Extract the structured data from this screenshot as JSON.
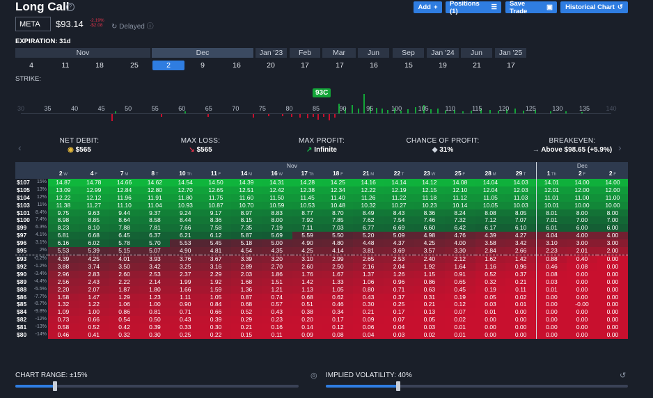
{
  "header": {
    "title": "Long Call",
    "help_icon": "question-circle-icon",
    "buttons": {
      "add": "Add",
      "positions": "Positions (1)",
      "save": "Save Trade",
      "historical": "Historical Chart"
    }
  },
  "quote": {
    "ticker": "META",
    "price": "$93.14",
    "change_pct": "-2.19%",
    "change_abs": "-$2.08",
    "delayed": "Delayed"
  },
  "expiration": {
    "label": "EXPIRATION: 31d",
    "months": [
      {
        "label": "Nov",
        "selected": false
      },
      {
        "label": "Dec",
        "selected": true
      },
      {
        "label": "Jan '23",
        "selected": false
      },
      {
        "label": "Feb",
        "selected": false
      },
      {
        "label": "Mar",
        "selected": false
      },
      {
        "label": "Jun",
        "selected": false
      },
      {
        "label": "Sep",
        "selected": false
      },
      {
        "label": "Jan '24",
        "selected": false
      },
      {
        "label": "Jun",
        "selected": false
      },
      {
        "label": "Jan '25",
        "selected": false
      }
    ],
    "days": [
      "4",
      "11",
      "18",
      "25",
      "2",
      "9",
      "16",
      "20",
      "17",
      "17",
      "16",
      "15",
      "19",
      "21",
      "17"
    ],
    "selected_day": "2"
  },
  "strike": {
    "label": "STRIKE:",
    "selected": "93C",
    "ticks": [
      "30",
      "35",
      "40",
      "45",
      "50",
      "55",
      "60",
      "65",
      "70",
      "75",
      "80",
      "85",
      "90",
      "95",
      "100",
      "105",
      "110",
      "115",
      "120",
      "125",
      "130",
      "135",
      "140"
    ]
  },
  "metrics": [
    {
      "label": "NET DEBIT:",
      "value": "$565",
      "icon": "coins-icon"
    },
    {
      "label": "MAX LOSS:",
      "value": "$565",
      "icon": "arrow-down-right-icon"
    },
    {
      "label": "MAX PROFIT:",
      "value": "Infinite",
      "icon": "arrow-up-right-icon"
    },
    {
      "label": "CHANCE OF PROFIT:",
      "value": "31%",
      "icon": "dice-icon"
    },
    {
      "label": "BREAKEVEN:",
      "value": "Above $98.65 (+5.9%)",
      "icon": "arrow-right-icon"
    }
  ],
  "grid": {
    "month_headers": [
      {
        "label": "",
        "span": 0
      },
      {
        "label": "Nov",
        "span": 22
      },
      {
        "label": "Dec",
        "span": 6
      }
    ],
    "days": [
      {
        "d": "2",
        "s": "W"
      },
      {
        "d": "4",
        "s": "F"
      },
      {
        "d": "7",
        "s": "M"
      },
      {
        "d": "8",
        "s": "T"
      },
      {
        "d": "10",
        "s": "Th"
      },
      {
        "d": "11",
        "s": "F"
      },
      {
        "d": "14",
        "s": "M"
      },
      {
        "d": "16",
        "s": "W"
      },
      {
        "d": "17",
        "s": "Th"
      },
      {
        "d": "18",
        "s": "F"
      },
      {
        "d": "21",
        "s": "M"
      },
      {
        "d": "22",
        "s": "T"
      },
      {
        "d": "23",
        "s": "W"
      },
      {
        "d": "25",
        "s": "F"
      },
      {
        "d": "28",
        "s": "M"
      },
      {
        "d": "29",
        "s": "T"
      },
      {
        "d": "1",
        "s": "Th"
      },
      {
        "d": "2",
        "s": "F"
      },
      {
        "d": "2",
        "s": "F"
      }
    ],
    "rows": [
      {
        "price": "$107",
        "pct": "15%",
        "vals": [
          "14.87",
          "14.78",
          "14.66",
          "14.62",
          "14.54",
          "14.50",
          "14.39",
          "14.31",
          "14.28",
          "14.25",
          "14.16",
          "14.14",
          "14.12",
          "14.08",
          "14.04",
          "14.03",
          "14.01",
          "14.00",
          "14.00"
        ]
      },
      {
        "price": "$105",
        "pct": "13%",
        "vals": [
          "13.09",
          "12.99",
          "12.84",
          "12.80",
          "12.70",
          "12.65",
          "12.51",
          "12.42",
          "12.38",
          "12.34",
          "12.22",
          "12.19",
          "12.15",
          "12.10",
          "12.04",
          "12.03",
          "12.01",
          "12.00",
          "12.00"
        ]
      },
      {
        "price": "$104",
        "pct": "12%",
        "vals": [
          "12.22",
          "12.12",
          "11.96",
          "11.91",
          "11.80",
          "11.75",
          "11.60",
          "11.50",
          "11.45",
          "11.40",
          "11.26",
          "11.22",
          "11.18",
          "11.12",
          "11.05",
          "11.03",
          "11.01",
          "11.00",
          "11.00"
        ]
      },
      {
        "price": "$103",
        "pct": "11%",
        "vals": [
          "11.38",
          "11.27",
          "11.10",
          "11.04",
          "10.93",
          "10.87",
          "10.70",
          "10.59",
          "10.53",
          "10.48",
          "10.32",
          "10.27",
          "10.23",
          "10.14",
          "10.05",
          "10.03",
          "10.01",
          "10.00",
          "10.00"
        ]
      },
      {
        "price": "$101",
        "pct": "8.4%",
        "vals": [
          "9.75",
          "9.63",
          "9.44",
          "9.37",
          "9.24",
          "9.17",
          "8.97",
          "8.83",
          "8.77",
          "8.70",
          "8.49",
          "8.43",
          "8.36",
          "8.24",
          "8.08",
          "8.05",
          "8.01",
          "8.00",
          "8.00"
        ]
      },
      {
        "price": "$100",
        "pct": "7.4%",
        "vals": [
          "8.98",
          "8.85",
          "8.64",
          "8.58",
          "8.44",
          "8.36",
          "8.15",
          "8.00",
          "7.92",
          "7.85",
          "7.62",
          "7.54",
          "7.46",
          "7.32",
          "7.12",
          "7.07",
          "7.01",
          "7.00",
          "7.00"
        ]
      },
      {
        "price": "$99",
        "pct": "6.3%",
        "vals": [
          "8.23",
          "8.10",
          "7.88",
          "7.81",
          "7.66",
          "7.58",
          "7.35",
          "7.19",
          "7.11",
          "7.03",
          "6.77",
          "6.69",
          "6.60",
          "6.42",
          "6.17",
          "6.10",
          "6.01",
          "6.00",
          "6.00"
        ]
      },
      {
        "price": "$97",
        "pct": "4.1%",
        "vals": [
          "6.81",
          "6.68",
          "6.45",
          "6.37",
          "6.21",
          "6.12",
          "5.87",
          "5.69",
          "5.59",
          "5.50",
          "5.20",
          "5.09",
          "4.98",
          "4.76",
          "4.39",
          "4.27",
          "4.04",
          "4.00",
          "4.00"
        ]
      },
      {
        "price": "$96",
        "pct": "3.1%",
        "vals": [
          "6.16",
          "6.02",
          "5.78",
          "5.70",
          "5.53",
          "5.45",
          "5.18",
          "5.00",
          "4.90",
          "4.80",
          "4.48",
          "4.37",
          "4.25",
          "4.00",
          "3.58",
          "3.42",
          "3.10",
          "3.00",
          "3.00"
        ]
      },
      {
        "price": "$95",
        "pct": "2%",
        "vals": [
          "5.53",
          "5.39",
          "5.15",
          "5.07",
          "4.90",
          "4.81",
          "4.54",
          "4.35",
          "4.25",
          "4.14",
          "3.81",
          "3.69",
          "3.57",
          "3.30",
          "2.84",
          "2.66",
          "2.23",
          "2.01",
          "2.00"
        ]
      },
      {
        "price": "$93",
        "pct": "-0.2%",
        "vals": [
          "4.39",
          "4.25",
          "4.01",
          "3.93",
          "3.76",
          "3.67",
          "3.39",
          "3.20",
          "3.10",
          "2.99",
          "2.65",
          "2.53",
          "2.40",
          "2.12",
          "1.62",
          "1.42",
          "0.88",
          "0.40",
          "0.00"
        ]
      },
      {
        "price": "$92",
        "pct": "-1.2%",
        "vals": [
          "3.88",
          "3.74",
          "3.50",
          "3.42",
          "3.25",
          "3.16",
          "2.89",
          "2.70",
          "2.60",
          "2.50",
          "2.16",
          "2.04",
          "1.92",
          "1.64",
          "1.16",
          "0.96",
          "0.46",
          "0.08",
          "0.00"
        ]
      },
      {
        "price": "$90",
        "pct": "-3.4%",
        "vals": [
          "2.96",
          "2.83",
          "2.60",
          "2.53",
          "2.37",
          "2.29",
          "2.03",
          "1.86",
          "1.76",
          "1.67",
          "1.37",
          "1.26",
          "1.15",
          "0.91",
          "0.52",
          "0.37",
          "0.08",
          "0.00",
          "0.00"
        ]
      },
      {
        "price": "$89",
        "pct": "-4.4%",
        "vals": [
          "2.56",
          "2.43",
          "2.22",
          "2.14",
          "1.99",
          "1.92",
          "1.68",
          "1.51",
          "1.42",
          "1.33",
          "1.06",
          "0.96",
          "0.86",
          "0.65",
          "0.32",
          "0.21",
          "0.03",
          "0.00",
          "0.00"
        ]
      },
      {
        "price": "$88",
        "pct": "-5.5%",
        "vals": [
          "2.20",
          "2.07",
          "1.87",
          "1.80",
          "1.66",
          "1.59",
          "1.36",
          "1.21",
          "1.13",
          "1.05",
          "0.80",
          "0.71",
          "0.63",
          "0.45",
          "0.19",
          "0.11",
          "0.01",
          "0.00",
          "0.00"
        ]
      },
      {
        "price": "$86",
        "pct": "-7.7%",
        "vals": [
          "1.58",
          "1.47",
          "1.29",
          "1.23",
          "1.11",
          "1.05",
          "0.87",
          "0.74",
          "0.68",
          "0.62",
          "0.43",
          "0.37",
          "0.31",
          "0.19",
          "0.05",
          "0.02",
          "0.00",
          "0.00",
          "0.00"
        ]
      },
      {
        "price": "$85",
        "pct": "-8.7%",
        "vals": [
          "1.32",
          "1.22",
          "1.06",
          "1.00",
          "0.90",
          "0.84",
          "0.68",
          "0.57",
          "0.51",
          "0.46",
          "0.30",
          "0.25",
          "0.21",
          "0.12",
          "0.03",
          "0.01",
          "0.00",
          "-0.00",
          "0.00"
        ]
      },
      {
        "price": "$84",
        "pct": "-9.8%",
        "vals": [
          "1.09",
          "1.00",
          "0.86",
          "0.81",
          "0.71",
          "0.66",
          "0.52",
          "0.43",
          "0.38",
          "0.34",
          "0.21",
          "0.17",
          "0.13",
          "0.07",
          "0.01",
          "0.00",
          "0.00",
          "0.00",
          "0.00"
        ]
      },
      {
        "price": "$82",
        "pct": "-12%",
        "vals": [
          "0.73",
          "0.66",
          "0.54",
          "0.50",
          "0.43",
          "0.39",
          "0.29",
          "0.23",
          "0.20",
          "0.17",
          "0.09",
          "0.07",
          "0.05",
          "0.02",
          "0.00",
          "0.00",
          "0.00",
          "0.00",
          "0.00"
        ]
      },
      {
        "price": "$81",
        "pct": "-13%",
        "vals": [
          "0.58",
          "0.52",
          "0.42",
          "0.39",
          "0.33",
          "0.30",
          "0.21",
          "0.16",
          "0.14",
          "0.12",
          "0.06",
          "0.04",
          "0.03",
          "0.01",
          "0.00",
          "0.00",
          "0.00",
          "0.00",
          "0.00"
        ]
      },
      {
        "price": "$80",
        "pct": "-14%",
        "vals": [
          "0.46",
          "0.41",
          "0.32",
          "0.30",
          "0.25",
          "0.22",
          "0.15",
          "0.11",
          "0.09",
          "0.08",
          "0.04",
          "0.03",
          "0.02",
          "0.01",
          "0.00",
          "0.00",
          "0.00",
          "0.00",
          "0.00"
        ]
      }
    ],
    "cost": 5.65
  },
  "footer": {
    "chart_range": "CHART RANGE: ±15%",
    "chart_range_level": 0.14,
    "implied_vol": "IMPLIED VOLATILITY: 40%",
    "iv_level": 0.24
  },
  "colors": {
    "accent": "#2f7de1",
    "profit": "#13a538",
    "loss": "#c8102e"
  }
}
